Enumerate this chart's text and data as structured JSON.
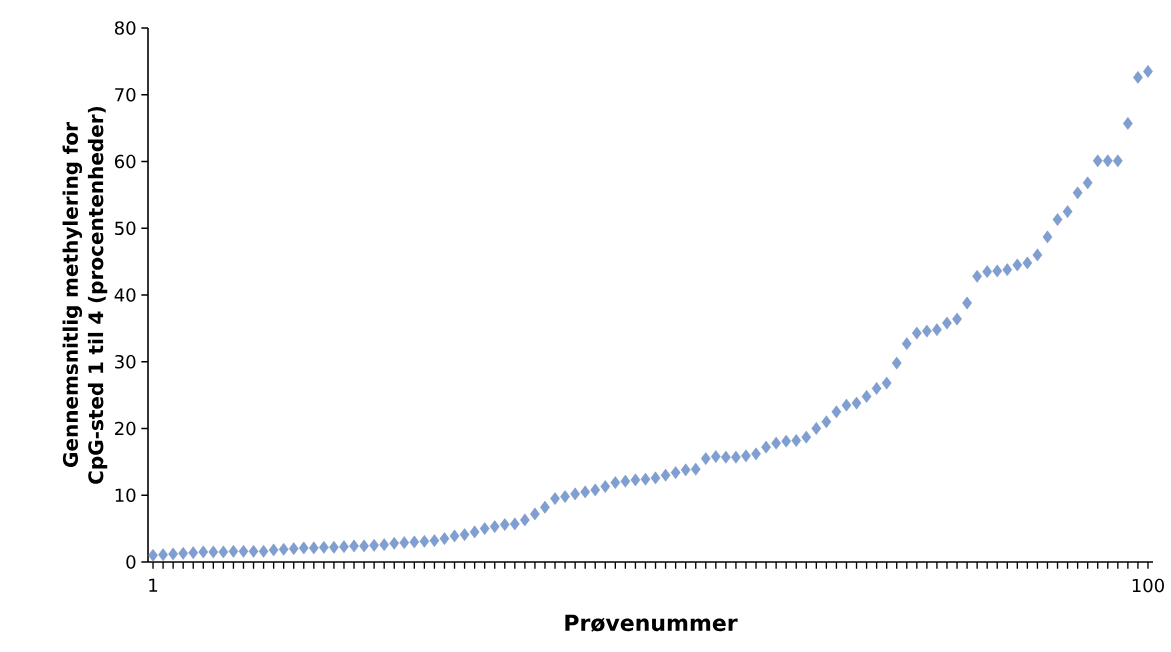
{
  "chart_data": {
    "type": "scatter",
    "xlabel": "Prøvenummer",
    "ylabel": "Gennemsnitlig methylering for CpG-sted 1 til 4 (procentenheder)",
    "x": [
      1,
      2,
      3,
      4,
      5,
      6,
      7,
      8,
      9,
      10,
      11,
      12,
      13,
      14,
      15,
      16,
      17,
      18,
      19,
      20,
      21,
      22,
      23,
      24,
      25,
      26,
      27,
      28,
      29,
      30,
      31,
      32,
      33,
      34,
      35,
      36,
      37,
      38,
      39,
      40,
      41,
      42,
      43,
      44,
      45,
      46,
      47,
      48,
      49,
      50,
      51,
      52,
      53,
      54,
      55,
      56,
      57,
      58,
      59,
      60,
      61,
      62,
      63,
      64,
      65,
      66,
      67,
      68,
      69,
      70,
      71,
      72,
      73,
      74,
      75,
      76,
      77,
      78,
      79,
      80,
      81,
      82,
      83,
      84,
      85,
      86,
      87,
      88,
      89,
      90,
      91,
      92,
      93,
      94,
      95,
      96,
      97,
      98,
      99,
      100
    ],
    "series": [
      {
        "color": "#7f9fd3",
        "values": [
          1.0,
          1.1,
          1.2,
          1.3,
          1.4,
          1.5,
          1.5,
          1.5,
          1.6,
          1.6,
          1.6,
          1.6,
          1.8,
          1.9,
          2.0,
          2.1,
          2.1,
          2.2,
          2.2,
          2.3,
          2.4,
          2.4,
          2.5,
          2.6,
          2.8,
          2.9,
          3.0,
          3.1,
          3.2,
          3.5,
          3.9,
          4.1,
          4.5,
          5.0,
          5.3,
          5.6,
          5.7,
          6.3,
          7.2,
          8.2,
          9.5,
          9.8,
          10.2,
          10.5,
          10.8,
          11.3,
          11.9,
          12.1,
          12.3,
          12.4,
          12.6,
          13.0,
          13.4,
          13.8,
          13.9,
          15.5,
          15.8,
          15.7,
          15.7,
          15.9,
          16.2,
          17.2,
          17.8,
          18.1,
          18.2,
          18.7,
          20.0,
          21.0,
          22.5,
          23.5,
          23.8,
          24.8,
          26.0,
          26.8,
          29.8,
          32.7,
          34.3,
          34.6,
          34.8,
          35.8,
          36.4,
          38.8,
          42.8,
          43.5,
          43.6,
          43.8,
          44.5,
          44.8,
          46.0,
          48.7,
          51.3,
          52.5,
          55.3,
          56.8,
          60.1,
          60.1,
          60.1,
          65.7,
          72.6,
          73.5
        ]
      }
    ],
    "marker": "diamond",
    "grid": false,
    "xlim": [
      0.5,
      100.5
    ],
    "xticks": [
      1,
      {
        "value": 2,
        "label": null
      },
      {
        "value": 3,
        "label": null
      },
      {
        "value": 4,
        "label": null
      },
      {
        "value": 5,
        "label": null
      },
      {
        "value": 6,
        "label": null
      },
      {
        "value": 7,
        "label": null
      },
      {
        "value": 8,
        "label": null
      },
      {
        "value": 9,
        "label": null
      },
      {
        "value": 10,
        "label": null
      },
      {
        "value": 11,
        "label": null
      },
      {
        "value": 12,
        "label": null
      },
      {
        "value": 13,
        "label": null
      },
      {
        "value": 14,
        "label": null
      },
      {
        "value": 15,
        "label": null
      },
      {
        "value": 16,
        "label": null
      },
      {
        "value": 17,
        "label": null
      },
      {
        "value": 18,
        "label": null
      },
      {
        "value": 19,
        "label": null
      },
      {
        "value": 20,
        "label": null
      },
      {
        "value": 21,
        "label": null
      },
      {
        "value": 22,
        "label": null
      },
      {
        "value": 23,
        "label": null
      },
      {
        "value": 24,
        "label": null
      },
      {
        "value": 25,
        "label": null
      },
      {
        "value": 26,
        "label": null
      },
      {
        "value": 27,
        "label": null
      },
      {
        "value": 28,
        "label": null
      },
      {
        "value": 29,
        "label": null
      },
      {
        "value": 30,
        "label": null
      },
      {
        "value": 31,
        "label": null
      },
      {
        "value": 32,
        "label": null
      },
      {
        "value": 33,
        "label": null
      },
      {
        "value": 34,
        "label": null
      },
      {
        "value": 35,
        "label": null
      },
      {
        "value": 36,
        "label": null
      },
      {
        "value": 37,
        "label": null
      },
      {
        "value": 38,
        "label": null
      },
      {
        "value": 39,
        "label": null
      },
      {
        "value": 40,
        "label": null
      },
      {
        "value": 41,
        "label": null
      },
      {
        "value": 42,
        "label": null
      },
      {
        "value": 43,
        "label": null
      },
      {
        "value": 44,
        "label": null
      },
      {
        "value": 45,
        "label": null
      },
      {
        "value": 46,
        "label": null
      },
      {
        "value": 47,
        "label": null
      },
      {
        "value": 48,
        "label": null
      },
      {
        "value": 49,
        "label": null
      },
      {
        "value": 50,
        "label": null
      },
      {
        "value": 51,
        "label": null
      },
      {
        "value": 52,
        "label": null
      },
      {
        "value": 53,
        "label": null
      },
      {
        "value": 54,
        "label": null
      },
      {
        "value": 55,
        "label": null
      },
      {
        "value": 56,
        "label": null
      },
      {
        "value": 57,
        "label": null
      },
      {
        "value": 58,
        "label": null
      },
      {
        "value": 59,
        "label": null
      },
      {
        "value": 60,
        "label": null
      },
      {
        "value": 61,
        "label": null
      },
      {
        "value": 62,
        "label": null
      },
      {
        "value": 63,
        "label": null
      },
      {
        "value": 64,
        "label": null
      },
      {
        "value": 65,
        "label": null
      },
      {
        "value": 66,
        "label": null
      },
      {
        "value": 67,
        "label": null
      },
      {
        "value": 68,
        "label": null
      },
      {
        "value": 69,
        "label": null
      },
      {
        "value": 70,
        "label": null
      },
      {
        "value": 71,
        "label": null
      },
      {
        "value": 72,
        "label": null
      },
      {
        "value": 73,
        "label": null
      },
      {
        "value": 74,
        "label": null
      },
      {
        "value": 75,
        "label": null
      },
      {
        "value": 76,
        "label": null
      },
      {
        "value": 77,
        "label": null
      },
      {
        "value": 78,
        "label": null
      },
      {
        "value": 79,
        "label": null
      },
      {
        "value": 80,
        "label": null
      },
      {
        "value": 81,
        "label": null
      },
      {
        "value": 82,
        "label": null
      },
      {
        "value": 83,
        "label": null
      },
      {
        "value": 84,
        "label": null
      },
      {
        "value": 85,
        "label": null
      },
      {
        "value": 86,
        "label": null
      },
      {
        "value": 87,
        "label": null
      },
      {
        "value": 88,
        "label": null
      },
      {
        "value": 89,
        "label": null
      },
      {
        "value": 90,
        "label": null
      },
      {
        "value": 91,
        "label": null
      },
      {
        "value": 92,
        "label": null
      },
      {
        "value": 93,
        "label": null
      },
      {
        "value": 94,
        "label": null
      },
      {
        "value": 95,
        "label": null
      },
      {
        "value": 96,
        "label": null
      },
      {
        "value": 97,
        "label": null
      },
      {
        "value": 98,
        "label": null
      },
      {
        "value": 99,
        "label": null
      },
      100
    ],
    "ylim": [
      0,
      80
    ],
    "yticks": [
      0,
      10,
      20,
      30,
      40,
      50,
      60,
      70,
      80
    ]
  }
}
